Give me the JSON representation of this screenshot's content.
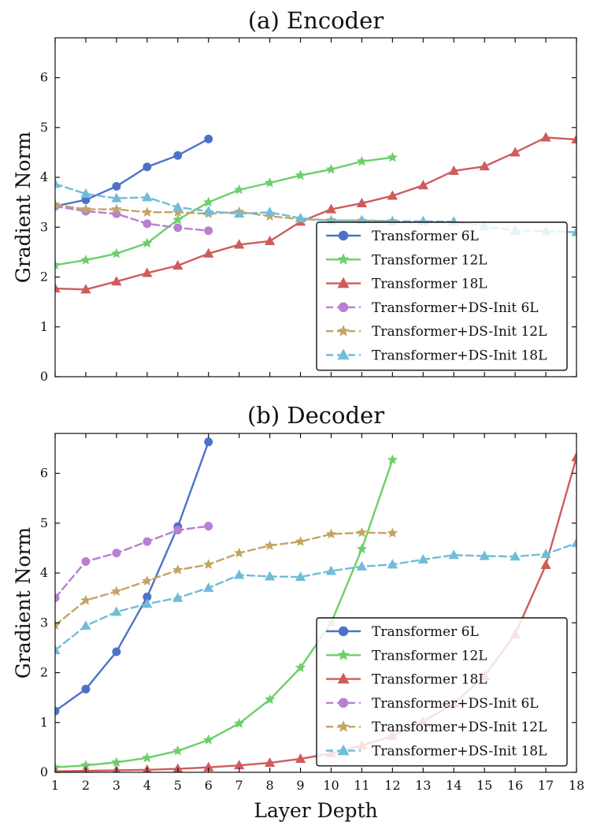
{
  "chart_data": [
    {
      "type": "line",
      "title": "(a) Encoder",
      "xlabel": "",
      "ylabel": "Gradient Norm",
      "xlim": [
        1,
        18
      ],
      "ylim": [
        0,
        6.8
      ],
      "y_ticks": [
        "0",
        "1",
        "2",
        "3",
        "4",
        "5",
        "6"
      ],
      "legend": "bottom-right",
      "series": [
        {
          "name": "Transformer 6L",
          "color": "#4c72c8",
          "dashed": false,
          "marker": "circle",
          "x": [
            1,
            2,
            3,
            4,
            5,
            6
          ],
          "y": [
            3.42,
            3.55,
            3.82,
            4.21,
            4.44,
            4.77
          ]
        },
        {
          "name": "Transformer 12L",
          "color": "#6ccf6a",
          "dashed": false,
          "marker": "star",
          "x": [
            1,
            2,
            3,
            4,
            5,
            6,
            7,
            8,
            9,
            10,
            11,
            12
          ],
          "y": [
            2.24,
            2.34,
            2.47,
            2.68,
            3.15,
            3.5,
            3.75,
            3.89,
            4.04,
            4.16,
            4.32,
            4.4
          ]
        },
        {
          "name": "Transformer 18L",
          "color": "#cf5c5c",
          "dashed": false,
          "marker": "triangle",
          "x": [
            1,
            2,
            3,
            4,
            5,
            6,
            7,
            8,
            9,
            10,
            11,
            12,
            13,
            14,
            15,
            16,
            17,
            18
          ],
          "y": [
            1.77,
            1.75,
            1.91,
            2.08,
            2.23,
            2.47,
            2.65,
            2.72,
            3.11,
            3.36,
            3.48,
            3.63,
            3.84,
            4.13,
            4.22,
            4.5,
            4.8,
            4.76
          ]
        },
        {
          "name": "Transformer+DS-Init 6L",
          "color": "#b97fd2",
          "dashed": true,
          "marker": "circle",
          "x": [
            1,
            2,
            3,
            4,
            5,
            6
          ],
          "y": [
            3.42,
            3.32,
            3.27,
            3.07,
            2.99,
            2.93
          ]
        },
        {
          "name": "Transformer+DS-Init 12L",
          "color": "#c4a464",
          "dashed": true,
          "marker": "star",
          "x": [
            1,
            2,
            3,
            4,
            5,
            6,
            7,
            8,
            9,
            10,
            11,
            12
          ],
          "y": [
            3.45,
            3.36,
            3.36,
            3.3,
            3.3,
            3.27,
            3.31,
            3.22,
            3.16,
            3.14,
            3.13,
            3.12
          ]
        },
        {
          "name": "Transformer+DS-Init 18L",
          "color": "#72bcd8",
          "dashed": true,
          "marker": "triangle",
          "x": [
            1,
            2,
            3,
            4,
            5,
            6,
            7,
            8,
            9,
            10,
            11,
            12,
            13,
            14,
            15,
            16,
            17,
            18
          ],
          "y": [
            3.87,
            3.67,
            3.58,
            3.6,
            3.4,
            3.32,
            3.27,
            3.3,
            3.18,
            3.13,
            3.14,
            3.12,
            3.12,
            3.11,
            3.02,
            2.93,
            2.92,
            2.9
          ]
        }
      ]
    },
    {
      "type": "line",
      "title": "(b) Decoder",
      "xlabel": "Layer Depth",
      "ylabel": "Gradient Norm",
      "xlim": [
        1,
        18
      ],
      "ylim": [
        0,
        6.8
      ],
      "x_ticks": [
        "1",
        "2",
        "3",
        "4",
        "5",
        "6",
        "7",
        "8",
        "9",
        "10",
        "11",
        "12",
        "13",
        "14",
        "15",
        "16",
        "17",
        "18"
      ],
      "y_ticks": [
        "0",
        "1",
        "2",
        "3",
        "4",
        "5",
        "6"
      ],
      "legend": "bottom-right",
      "series": [
        {
          "name": "Transformer 6L",
          "color": "#4c72c8",
          "dashed": false,
          "marker": "circle",
          "x": [
            1,
            2,
            3,
            4,
            5,
            6
          ],
          "y": [
            1.23,
            1.67,
            2.42,
            3.52,
            4.93,
            6.63
          ]
        },
        {
          "name": "Transformer 12L",
          "color": "#6ccf6a",
          "dashed": false,
          "marker": "star",
          "x": [
            1,
            2,
            3,
            4,
            5,
            6,
            7,
            8,
            9,
            10,
            11,
            12
          ],
          "y": [
            0.1,
            0.14,
            0.2,
            0.29,
            0.43,
            0.65,
            0.98,
            1.46,
            2.1,
            3.0,
            4.48,
            6.27
          ]
        },
        {
          "name": "Transformer 18L",
          "color": "#cf5c5c",
          "dashed": false,
          "marker": "triangle",
          "x": [
            1,
            2,
            3,
            4,
            5,
            6,
            7,
            8,
            9,
            10,
            11,
            12,
            13,
            14,
            15,
            16,
            17,
            18
          ],
          "y": [
            0.02,
            0.03,
            0.04,
            0.05,
            0.07,
            0.1,
            0.14,
            0.19,
            0.27,
            0.38,
            0.54,
            0.73,
            1.02,
            1.38,
            1.93,
            2.77,
            4.16,
            6.32
          ]
        },
        {
          "name": "Transformer+DS-Init 6L",
          "color": "#b97fd2",
          "dashed": true,
          "marker": "circle",
          "x": [
            1,
            2,
            3,
            4,
            5,
            6
          ],
          "y": [
            3.5,
            4.23,
            4.4,
            4.63,
            4.86,
            4.94
          ]
        },
        {
          "name": "Transformer+DS-Init 12L",
          "color": "#c4a464",
          "dashed": true,
          "marker": "star",
          "x": [
            1,
            2,
            3,
            4,
            5,
            6,
            7,
            8,
            9,
            10,
            11,
            12
          ],
          "y": [
            2.95,
            3.45,
            3.63,
            3.84,
            4.06,
            4.17,
            4.4,
            4.55,
            4.63,
            4.78,
            4.81,
            4.8
          ]
        },
        {
          "name": "Transformer+DS-Init 18L",
          "color": "#72bcd8",
          "dashed": true,
          "marker": "triangle",
          "x": [
            1,
            2,
            3,
            4,
            5,
            6,
            7,
            8,
            9,
            10,
            11,
            12,
            13,
            14,
            15,
            16,
            17,
            18
          ],
          "y": [
            2.45,
            2.94,
            3.22,
            3.38,
            3.5,
            3.7,
            3.96,
            3.93,
            3.92,
            4.04,
            4.13,
            4.17,
            4.27,
            4.36,
            4.34,
            4.33,
            4.38,
            4.6
          ]
        }
      ]
    }
  ]
}
